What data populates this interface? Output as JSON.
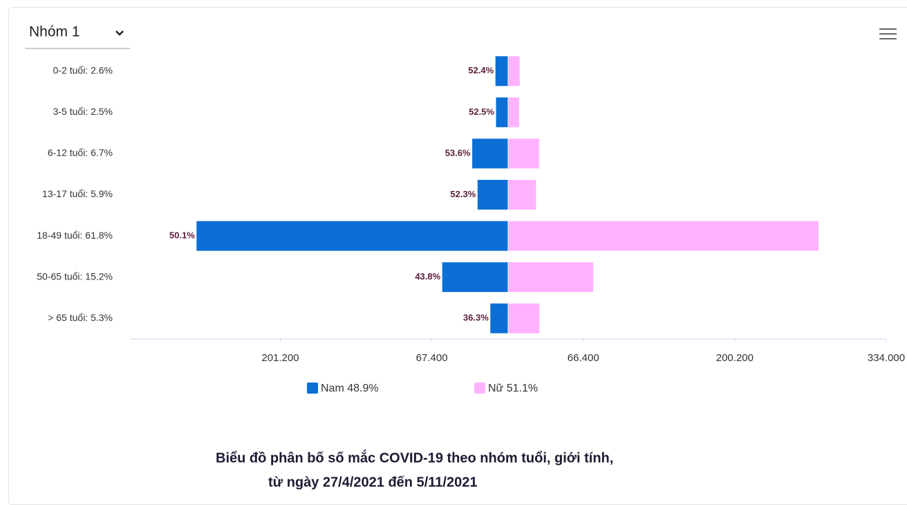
{
  "dropdown": "Nhóm 1",
  "chart_data": {
    "type": "pyramid",
    "title": [
      "Biểu đồ phân bố số mắc COVID-19 theo nhóm tuổi, giới tính,",
      "từ ngày 27/4/2021 đến 5/11/2021"
    ],
    "categories": [
      "0-2 tuổi: 2.6%",
      "3-5 tuổi: 2.5%",
      "6-12 tuổi: 6.7%",
      "13-17 tuổi: 5.9%",
      "18-49 tuổi: 61.8%",
      "50-65 tuổi: 15.2%",
      "> 65 tuổi: 5.3%"
    ],
    "series": [
      {
        "name": "Nam 48.9%",
        "color": "#0b6fd6",
        "side": "left",
        "values": [
          11500,
          11000,
          32000,
          27300,
          275500,
          58500,
          16000
        ],
        "share_labels": [
          "52.4%",
          "52.5%",
          "53.6%",
          "52.3%",
          "50.1%",
          "43.8%",
          "36.3%"
        ]
      },
      {
        "name": "Nữ 51.1%",
        "color": "#ffb3ff",
        "side": "right",
        "values": [
          10500,
          10000,
          27700,
          24900,
          274500,
          75500,
          28000
        ]
      }
    ],
    "xlim": [
      -334000,
      334000
    ],
    "xticks": [
      {
        "value": -201200,
        "label": "201.200"
      },
      {
        "value": -67400,
        "label": "67.400"
      },
      {
        "value": 66400,
        "label": "66.400"
      },
      {
        "value": 200200,
        "label": "200.200"
      },
      {
        "value": 334000,
        "label": "334.000"
      }
    ],
    "legend": "bottom"
  }
}
